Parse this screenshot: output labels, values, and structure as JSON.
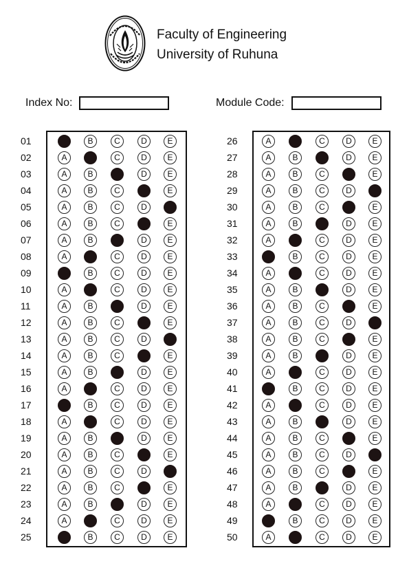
{
  "header": {
    "faculty": "Faculty of Engineering",
    "university": "University of Ruhuna",
    "logo_icon": "university-seal-icon"
  },
  "fields": {
    "index_label": "Index No:",
    "index_value": "",
    "module_label": "Module Code:",
    "module_value": ""
  },
  "options": [
    "A",
    "B",
    "C",
    "D",
    "E"
  ],
  "colors": {
    "fill": "#1d1313",
    "ink": "#111111"
  },
  "columns": [
    {
      "questions": [
        {
          "num": "01",
          "selected": "A"
        },
        {
          "num": "02",
          "selected": "B"
        },
        {
          "num": "03",
          "selected": "C"
        },
        {
          "num": "04",
          "selected": "D"
        },
        {
          "num": "05",
          "selected": "E"
        },
        {
          "num": "06",
          "selected": "D"
        },
        {
          "num": "07",
          "selected": "C"
        },
        {
          "num": "08",
          "selected": "B"
        },
        {
          "num": "09",
          "selected": "A"
        },
        {
          "num": "10",
          "selected": "B"
        },
        {
          "num": "11",
          "selected": "C"
        },
        {
          "num": "12",
          "selected": "D"
        },
        {
          "num": "13",
          "selected": "E"
        },
        {
          "num": "14",
          "selected": "D"
        },
        {
          "num": "15",
          "selected": "C"
        },
        {
          "num": "16",
          "selected": "B"
        },
        {
          "num": "17",
          "selected": "A"
        },
        {
          "num": "18",
          "selected": "B"
        },
        {
          "num": "19",
          "selected": "C"
        },
        {
          "num": "20",
          "selected": "D"
        },
        {
          "num": "21",
          "selected": "E"
        },
        {
          "num": "22",
          "selected": "D"
        },
        {
          "num": "23",
          "selected": "C"
        },
        {
          "num": "24",
          "selected": "B"
        },
        {
          "num": "25",
          "selected": "A"
        }
      ]
    },
    {
      "questions": [
        {
          "num": "26",
          "selected": "B"
        },
        {
          "num": "27",
          "selected": "C"
        },
        {
          "num": "28",
          "selected": "D"
        },
        {
          "num": "29",
          "selected": "E"
        },
        {
          "num": "30",
          "selected": "D"
        },
        {
          "num": "31",
          "selected": "C"
        },
        {
          "num": "32",
          "selected": "B"
        },
        {
          "num": "33",
          "selected": "A"
        },
        {
          "num": "34",
          "selected": "B"
        },
        {
          "num": "35",
          "selected": "C"
        },
        {
          "num": "36",
          "selected": "D"
        },
        {
          "num": "37",
          "selected": "E"
        },
        {
          "num": "38",
          "selected": "D"
        },
        {
          "num": "39",
          "selected": "C"
        },
        {
          "num": "40",
          "selected": "B"
        },
        {
          "num": "41",
          "selected": "A"
        },
        {
          "num": "42",
          "selected": "B"
        },
        {
          "num": "43",
          "selected": "C"
        },
        {
          "num": "44",
          "selected": "D"
        },
        {
          "num": "45",
          "selected": "E"
        },
        {
          "num": "46",
          "selected": "D"
        },
        {
          "num": "47",
          "selected": "C"
        },
        {
          "num": "48",
          "selected": "B"
        },
        {
          "num": "49",
          "selected": "A"
        },
        {
          "num": "50",
          "selected": "B"
        }
      ]
    }
  ]
}
